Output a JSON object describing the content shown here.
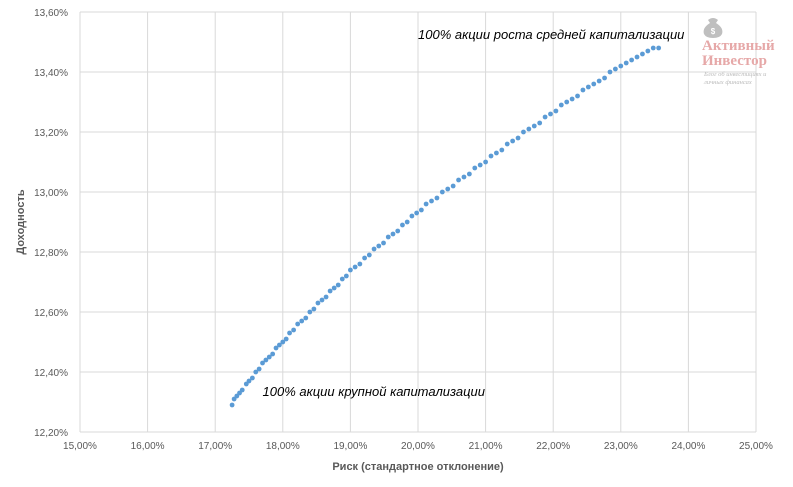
{
  "chart_data": {
    "type": "scatter",
    "title": "",
    "xlabel": "Риск (стандартное отклонение)",
    "ylabel": "Доходность",
    "xlim": [
      15,
      25
    ],
    "ylim": [
      12.2,
      13.6
    ],
    "x_ticks": [
      "15,00%",
      "16,00%",
      "17,00%",
      "18,00%",
      "19,00%",
      "20,00%",
      "21,00%",
      "22,00%",
      "23,00%",
      "24,00%",
      "25,00%"
    ],
    "y_ticks": [
      "12,20%",
      "12,40%",
      "12,60%",
      "12,80%",
      "13,00%",
      "13,20%",
      "13,40%",
      "13,60%"
    ],
    "grid": "vertical and horizontal",
    "point_color": "#5b9bd5",
    "series": [
      {
        "points": [
          [
            17.25,
            12.29
          ],
          [
            17.28,
            12.31
          ],
          [
            17.32,
            12.32
          ],
          [
            17.36,
            12.33
          ],
          [
            17.4,
            12.34
          ],
          [
            17.46,
            12.36
          ],
          [
            17.5,
            12.37
          ],
          [
            17.55,
            12.38
          ],
          [
            17.6,
            12.4
          ],
          [
            17.65,
            12.41
          ],
          [
            17.7,
            12.43
          ],
          [
            17.75,
            12.44
          ],
          [
            17.8,
            12.45
          ],
          [
            17.85,
            12.46
          ],
          [
            17.9,
            12.48
          ],
          [
            17.95,
            12.49
          ],
          [
            18.0,
            12.5
          ],
          [
            18.05,
            12.51
          ],
          [
            18.1,
            12.53
          ],
          [
            18.16,
            12.54
          ],
          [
            18.22,
            12.56
          ],
          [
            18.28,
            12.57
          ],
          [
            18.34,
            12.58
          ],
          [
            18.4,
            12.6
          ],
          [
            18.46,
            12.61
          ],
          [
            18.52,
            12.63
          ],
          [
            18.58,
            12.64
          ],
          [
            18.64,
            12.65
          ],
          [
            18.7,
            12.67
          ],
          [
            18.76,
            12.68
          ],
          [
            18.82,
            12.69
          ],
          [
            18.88,
            12.71
          ],
          [
            18.94,
            12.72
          ],
          [
            19.0,
            12.74
          ],
          [
            19.07,
            12.75
          ],
          [
            19.14,
            12.76
          ],
          [
            19.21,
            12.78
          ],
          [
            19.28,
            12.79
          ],
          [
            19.35,
            12.81
          ],
          [
            19.42,
            12.82
          ],
          [
            19.49,
            12.83
          ],
          [
            19.56,
            12.85
          ],
          [
            19.63,
            12.86
          ],
          [
            19.7,
            12.87
          ],
          [
            19.77,
            12.89
          ],
          [
            19.84,
            12.9
          ],
          [
            19.91,
            12.92
          ],
          [
            19.98,
            12.93
          ],
          [
            20.05,
            12.94
          ],
          [
            20.12,
            12.96
          ],
          [
            20.2,
            12.97
          ],
          [
            20.28,
            12.98
          ],
          [
            20.36,
            13.0
          ],
          [
            20.44,
            13.01
          ],
          [
            20.52,
            13.02
          ],
          [
            20.6,
            13.04
          ],
          [
            20.68,
            13.05
          ],
          [
            20.76,
            13.06
          ],
          [
            20.84,
            13.08
          ],
          [
            20.92,
            13.09
          ],
          [
            21.0,
            13.1
          ],
          [
            21.08,
            13.12
          ],
          [
            21.16,
            13.13
          ],
          [
            21.24,
            13.14
          ],
          [
            21.32,
            13.16
          ],
          [
            21.4,
            13.17
          ],
          [
            21.48,
            13.18
          ],
          [
            21.56,
            13.2
          ],
          [
            21.64,
            13.21
          ],
          [
            21.72,
            13.22
          ],
          [
            21.8,
            13.23
          ],
          [
            21.88,
            13.25
          ],
          [
            21.96,
            13.26
          ],
          [
            22.04,
            13.27
          ],
          [
            22.12,
            13.29
          ],
          [
            22.2,
            13.3
          ],
          [
            22.28,
            13.31
          ],
          [
            22.36,
            13.32
          ],
          [
            22.44,
            13.34
          ],
          [
            22.52,
            13.35
          ],
          [
            22.6,
            13.36
          ],
          [
            22.68,
            13.37
          ],
          [
            22.76,
            13.38
          ],
          [
            22.84,
            13.4
          ],
          [
            22.92,
            13.41
          ],
          [
            23.0,
            13.42
          ],
          [
            23.08,
            13.43
          ],
          [
            23.16,
            13.44
          ],
          [
            23.24,
            13.45
          ],
          [
            23.32,
            13.46
          ],
          [
            23.4,
            13.47
          ],
          [
            23.48,
            13.48
          ],
          [
            23.56,
            13.48
          ]
        ]
      }
    ],
    "annotations": [
      {
        "text": "100% акции роста средней капитализации",
        "x": 20.0,
        "y": 13.51
      },
      {
        "text": "100% акции крупной капитализации",
        "x": 17.7,
        "y": 12.32
      }
    ]
  },
  "logo": {
    "icon": "money-bag-icon",
    "title_line1": "Активный",
    "title_line2": "Инвестор",
    "subtitle_line1": "Блог об инвестициях и",
    "subtitle_line2": "личных финансах",
    "accent_color": "#e6a8a8"
  }
}
